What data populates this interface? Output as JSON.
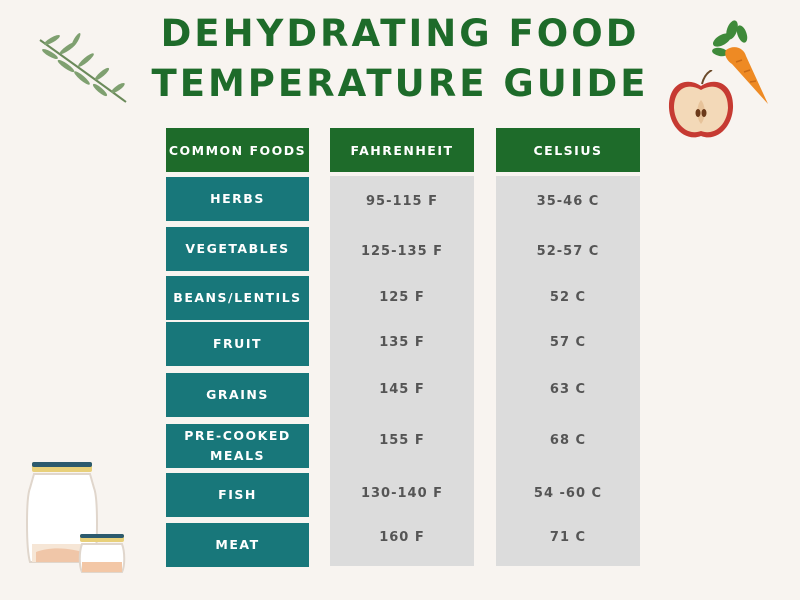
{
  "title": {
    "line1": "DEHYDRATING FOOD",
    "line2": "TEMPERATURE GUIDE"
  },
  "headers": {
    "foods": "COMMON FOODS",
    "fahrenheit": "FAHRENHEIT",
    "celsius": "CELSIUS"
  },
  "rows": [
    {
      "food": "HERBS",
      "fahrenheit": "95-115 F",
      "celsius": "35-46 C"
    },
    {
      "food": "VEGETABLES",
      "fahrenheit": "125-135 F",
      "celsius": "52-57 C"
    },
    {
      "food": "BEANS/LENTILS",
      "fahrenheit": "125 F",
      "celsius": "52 C"
    },
    {
      "food": "FRUIT",
      "fahrenheit": "135 F",
      "celsius": "57 C"
    },
    {
      "food": "GRAINS",
      "fahrenheit": "145 F",
      "celsius": "63 C"
    },
    {
      "food": "PRE-COOKED MEALS",
      "fahrenheit": "155 F",
      "celsius": "68 C"
    },
    {
      "food": "FISH",
      "fahrenheit": "130-140 F",
      "celsius": "54 -60 C"
    },
    {
      "food": "MEAT",
      "fahrenheit": "160 F",
      "celsius": "71 C"
    }
  ],
  "colors": {
    "title": "#1e6b2a",
    "header_bg": "#1e6b2a",
    "food_bg": "#18777a",
    "panel_bg": "#dcdcdc",
    "page_bg": "#f8f4f0"
  },
  "icons": [
    "herb-sprig-icon",
    "apple-half-icon",
    "carrot-icon",
    "jars-icon"
  ]
}
